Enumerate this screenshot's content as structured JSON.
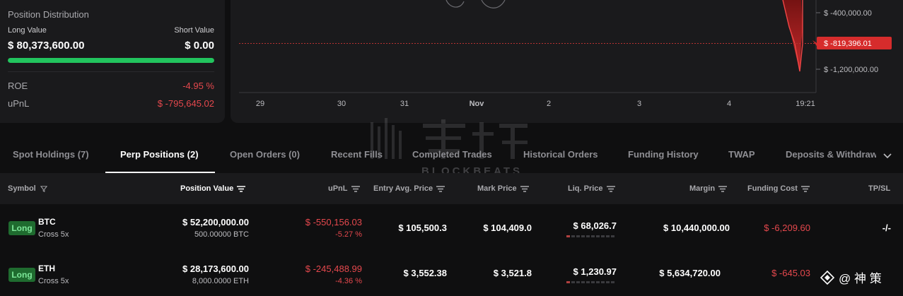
{
  "position_distribution": {
    "title": "Position Distribution",
    "long_label": "Long Value",
    "short_label": "Short Value",
    "long_value": "$ 80,373,600.00",
    "short_value": "$ 0.00",
    "long_share": 1.0,
    "roe_label": "ROE",
    "roe_value": "-4.95 %",
    "upnl_label": "uPnL",
    "upnl_value": "$ -795,645.02",
    "colors": {
      "long": "#22c55e",
      "negative": "#e5484d"
    }
  },
  "chart": {
    "x_labels": [
      "29",
      "30",
      "31",
      "Nov",
      "2",
      "3",
      "4",
      "19:21"
    ],
    "y_labels": [
      "$ -400,000.00",
      "$ -1,200,000.00"
    ],
    "current_value_label": "$ -819,396.01",
    "current_color": "#d62c2c"
  },
  "chart_data": {
    "type": "area",
    "x": [
      "29",
      "30",
      "31",
      "Nov",
      "2",
      "3",
      "4",
      "19:21"
    ],
    "y_ticks": [
      -400000,
      -1200000
    ],
    "current_value": -819396.01
  },
  "tabs": [
    {
      "label": "Spot Holdings (7)",
      "active": false
    },
    {
      "label": "Perp Positions (2)",
      "active": true
    },
    {
      "label": "Open Orders (0)",
      "active": false
    },
    {
      "label": "Recent Fills",
      "active": false
    },
    {
      "label": "Completed Trades",
      "active": false
    },
    {
      "label": "Historical Orders",
      "active": false
    },
    {
      "label": "Funding History",
      "active": false
    },
    {
      "label": "TWAP",
      "active": false
    },
    {
      "label": "Deposits & Withdraw",
      "active": false
    }
  ],
  "columns": [
    "Symbol",
    "Position Value",
    "uPnL",
    "Entry Avg. Price",
    "Mark Price",
    "Liq. Price",
    "Margin",
    "Funding Cost",
    "TP/SL"
  ],
  "rows": [
    {
      "side": "Long",
      "symbol": "BTC",
      "mode": "Cross 5x",
      "position_value": "$ 52,200,000.00",
      "size": "500.00000 BTC",
      "upnl": "$ -550,156.03",
      "upnl_pct": "-5.27 %",
      "entry": "$ 105,500.3",
      "mark": "$ 104,409.0",
      "liq": "$ 68,026.7",
      "margin": "$ 10,440,000.00",
      "funding": "$ -6,209.60",
      "tpsl": "-/-"
    },
    {
      "side": "Long",
      "symbol": "ETH",
      "mode": "Cross 5x",
      "position_value": "$ 28,173,600.00",
      "size": "8,000.0000 ETH",
      "upnl": "$ -245,488.99",
      "upnl_pct": "-4.36 %",
      "entry": "$ 3,552.38",
      "mark": "$ 3,521.8",
      "liq": "$ 1,230.97",
      "margin": "$ 5,634,720.00",
      "funding": "$ -645.03",
      "tpsl": ""
    }
  ],
  "watermark": {
    "text": "BLOCKBEATS"
  },
  "corner_logo": {
    "text": "@ 神 策"
  }
}
